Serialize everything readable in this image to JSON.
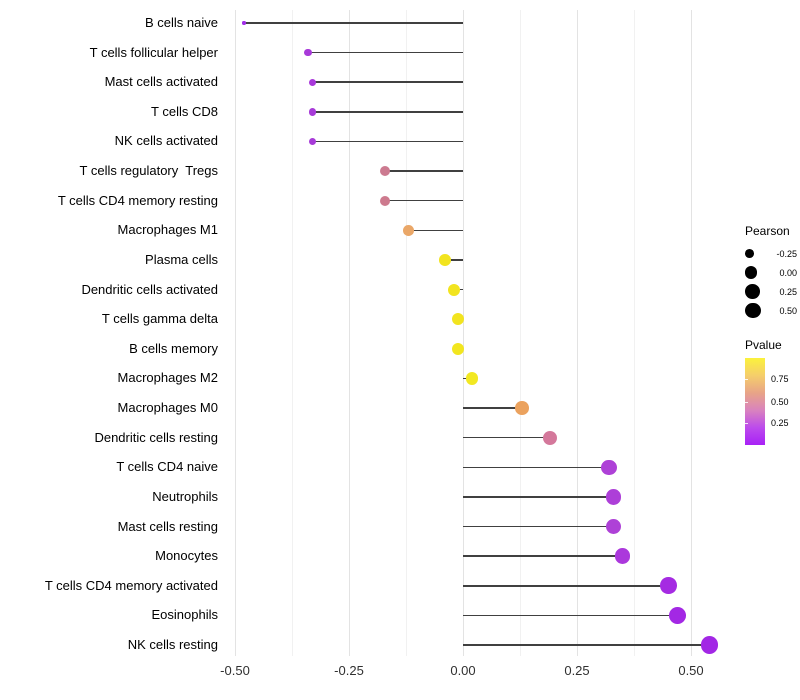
{
  "chart_data": {
    "type": "scatter",
    "variant": "lollipop",
    "orientation": "horizontal",
    "title": "",
    "xlabel": "",
    "ylabel": "",
    "xlim": [
      -0.55,
      0.6
    ],
    "x_major_ticks": [
      -0.5,
      -0.25,
      0.0,
      0.25,
      0.5
    ],
    "x_tick_labels": [
      "-0.50",
      "-0.25",
      "0.00",
      "0.25",
      "0.50"
    ],
    "x_minor_ticks": [
      -0.375,
      -0.125,
      0.125,
      0.375
    ],
    "grid": "vertical-only",
    "stem_color": "#404040",
    "points": [
      {
        "label": "B cells naive",
        "pearson": -0.48,
        "color": "#A12DE8"
      },
      {
        "label": "T cells follicular helper",
        "pearson": -0.34,
        "color": "#A83AD9"
      },
      {
        "label": "Mast cells activated",
        "pearson": -0.33,
        "color": "#A838DA"
      },
      {
        "label": "T cells CD8",
        "pearson": -0.33,
        "color": "#A73BD8"
      },
      {
        "label": "NK cells activated",
        "pearson": -0.33,
        "color": "#A73BD8"
      },
      {
        "label": "T cells regulatory  Tregs",
        "pearson": -0.17,
        "color": "#CC7A90"
      },
      {
        "label": "T cells CD4 memory resting",
        "pearson": -0.17,
        "color": "#CD7A8E"
      },
      {
        "label": "Macrophages M1",
        "pearson": -0.12,
        "color": "#EAA768"
      },
      {
        "label": "Plasma cells",
        "pearson": -0.04,
        "color": "#F2E41F"
      },
      {
        "label": "Dendritic cells activated",
        "pearson": -0.02,
        "color": "#F2E41F"
      },
      {
        "label": "T cells gamma delta",
        "pearson": -0.01,
        "color": "#F2E41F"
      },
      {
        "label": "B cells memory",
        "pearson": -0.01,
        "color": "#F2E61F"
      },
      {
        "label": "Macrophages M2",
        "pearson": 0.02,
        "color": "#F2E822"
      },
      {
        "label": "Macrophages M0",
        "pearson": 0.13,
        "color": "#EBA25E"
      },
      {
        "label": "Dendritic cells resting",
        "pearson": 0.19,
        "color": "#D4789B"
      },
      {
        "label": "T cells CD4 naive",
        "pearson": 0.32,
        "color": "#AE41D7"
      },
      {
        "label": "Neutrophils",
        "pearson": 0.33,
        "color": "#AD3FD8"
      },
      {
        "label": "Mast cells resting",
        "pearson": 0.33,
        "color": "#AE41D7"
      },
      {
        "label": "Monocytes",
        "pearson": 0.35,
        "color": "#AB38DC"
      },
      {
        "label": "T cells CD4 memory activated",
        "pearson": 0.45,
        "color": "#A52BE2"
      },
      {
        "label": "Eosinophils",
        "pearson": 0.47,
        "color": "#A328E4"
      },
      {
        "label": "NK cells resting",
        "pearson": 0.54,
        "color": "#A227E5"
      }
    ],
    "legend": {
      "position": "right",
      "size_legend": {
        "title": "Pearson",
        "entries": [
          {
            "label": "-0.25",
            "value": -0.25
          },
          {
            "label": "0.00",
            "value": 0.0
          },
          {
            "label": "0.25",
            "value": 0.25
          },
          {
            "label": "0.50",
            "value": 0.5
          }
        ]
      },
      "color_legend": {
        "title": "Pvalue",
        "labels": [
          "0.75",
          "0.50",
          "0.25"
        ],
        "label_positions": [
          0.24,
          0.5,
          0.75
        ],
        "gradient_top_to_bottom": [
          "#FBF23C",
          "#F5CE6B",
          "#E8A487",
          "#D983BE",
          "#BC4BEC",
          "#A821F6"
        ]
      }
    }
  }
}
